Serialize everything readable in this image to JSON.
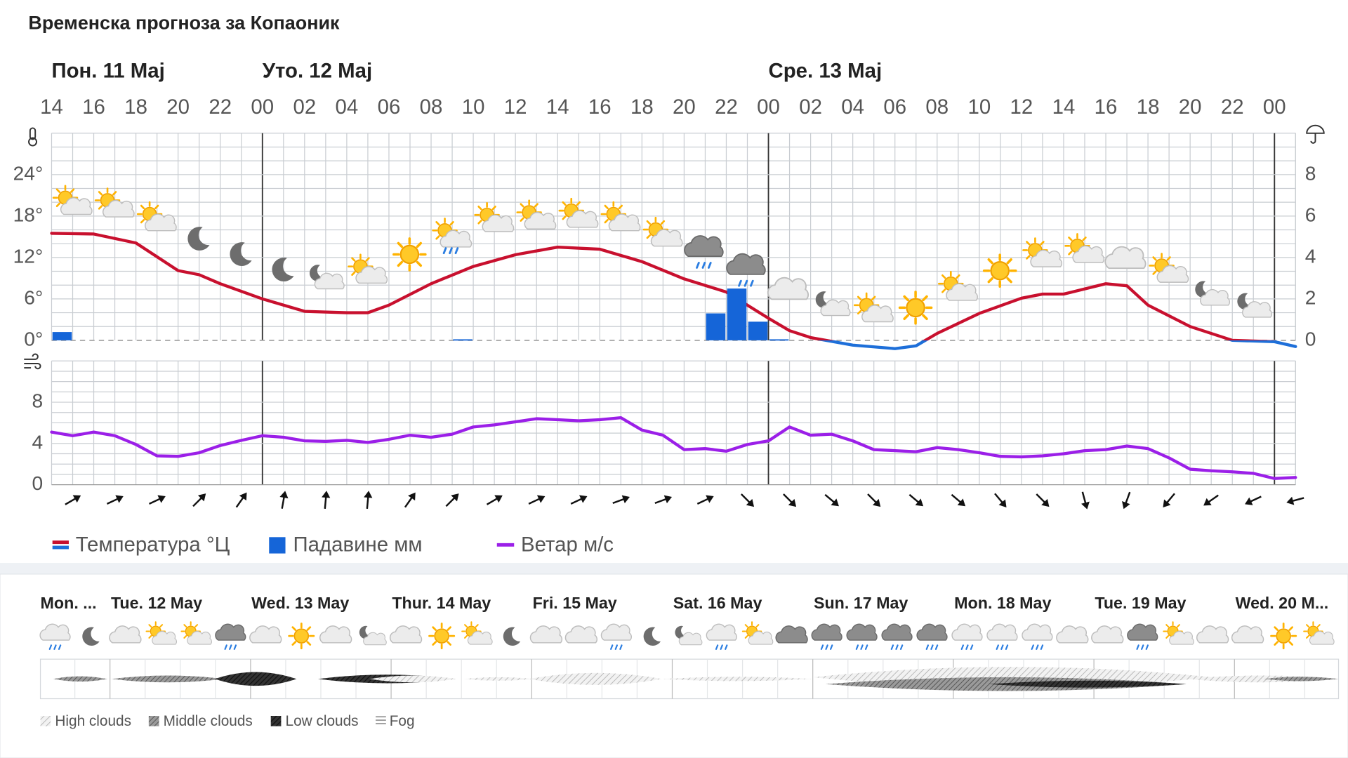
{
  "title": "Временска прогноза за Копаоник",
  "chart_data": [
    {
      "type": "line",
      "xlim": [
        0,
        59
      ],
      "xticks": [
        {
          "value": 0,
          "label": "14"
        },
        {
          "value": 2,
          "label": "16"
        },
        {
          "value": 4,
          "label": "18"
        },
        {
          "value": 6,
          "label": "20"
        },
        {
          "value": 8,
          "label": "22"
        },
        {
          "value": 10,
          "label": "00"
        },
        {
          "value": 12,
          "label": "02"
        },
        {
          "value": 14,
          "label": "04"
        },
        {
          "value": 16,
          "label": "06"
        },
        {
          "value": 18,
          "label": "08"
        },
        {
          "value": 20,
          "label": "10"
        },
        {
          "value": 22,
          "label": "12"
        },
        {
          "value": 24,
          "label": "14"
        },
        {
          "value": 26,
          "label": "16"
        },
        {
          "value": 28,
          "label": "18"
        },
        {
          "value": 30,
          "label": "20"
        },
        {
          "value": 32,
          "label": "22"
        },
        {
          "value": 34,
          "label": "00"
        },
        {
          "value": 36,
          "label": "02"
        },
        {
          "value": 38,
          "label": "04"
        },
        {
          "value": 40,
          "label": "06"
        },
        {
          "value": 42,
          "label": "08"
        },
        {
          "value": 44,
          "label": "10"
        },
        {
          "value": 46,
          "label": "12"
        },
        {
          "value": 48,
          "label": "14"
        },
        {
          "value": 50,
          "label": "16"
        },
        {
          "value": 52,
          "label": "18"
        },
        {
          "value": 54,
          "label": "20"
        },
        {
          "value": 56,
          "label": "22"
        },
        {
          "value": 58,
          "label": "00"
        }
      ],
      "days": [
        {
          "value": 0,
          "label": "Пон. 11 Maj"
        },
        {
          "value": 10,
          "label": "Уто. 12 Maj"
        },
        {
          "value": 34,
          "label": "Сре. 13 Maj"
        }
      ],
      "ylim": [
        0,
        30
      ],
      "yticks": [
        {
          "value": 0,
          "label": "0°"
        },
        {
          "value": 6,
          "label": "6°"
        },
        {
          "value": 12,
          "label": "12°"
        },
        {
          "value": 18,
          "label": "18°"
        },
        {
          "value": 24,
          "label": "24°"
        }
      ],
      "y2lim": [
        0,
        10
      ],
      "y2ticks": [
        0,
        2,
        4,
        6,
        8
      ],
      "grid": true,
      "series": [
        {
          "name": "Температура °Ц",
          "color": "#c8102e",
          "negative_color": "#1e6fd9",
          "x": [
            0,
            2,
            4,
            6,
            7,
            8,
            10,
            12,
            14,
            15,
            16,
            18,
            20,
            22,
            24,
            26,
            28,
            30,
            32,
            34,
            35,
            36,
            38,
            40,
            41,
            42,
            44,
            46,
            47,
            48,
            50,
            51,
            52,
            54,
            56,
            58,
            59
          ],
          "values": [
            15.5,
            15.4,
            14.1,
            10.1,
            9.5,
            8.2,
            6,
            4.2,
            4,
            4,
            5.1,
            8.2,
            10.7,
            12.4,
            13.5,
            13.2,
            11.4,
            8.9,
            7,
            3.2,
            1.4,
            0.4,
            -0.7,
            -1.2,
            -0.8,
            1,
            3.9,
            6.1,
            6.7,
            6.7,
            8.2,
            7.9,
            5.1,
            2,
            0,
            -0.2,
            -0.9
          ]
        },
        {
          "name": "Падавине мм",
          "type": "bar",
          "axis": "y2",
          "color": "#1565d8",
          "x": [
            0,
            19,
            31,
            32,
            33,
            34
          ],
          "values": [
            0.4,
            0.05,
            1.3,
            2.5,
            0.9,
            0.05
          ]
        }
      ]
    },
    {
      "type": "line",
      "ylim": [
        0,
        12
      ],
      "yticks": [
        0,
        4,
        8
      ],
      "grid": true,
      "series": [
        {
          "name": "Ветар м/с",
          "color": "#9b1fe8",
          "x": [
            0,
            1,
            2,
            3,
            4,
            5,
            6,
            7,
            8,
            9,
            10,
            11,
            12,
            13,
            14,
            15,
            16,
            17,
            18,
            19,
            20,
            21,
            22,
            23,
            24,
            25,
            26,
            27,
            28,
            29,
            30,
            31,
            32,
            33,
            34,
            35,
            36,
            37,
            38,
            39,
            40,
            41,
            42,
            43,
            44,
            45,
            46,
            47,
            48,
            49,
            50,
            51,
            52,
            53,
            54,
            55,
            56,
            57,
            58,
            59
          ],
          "values": [
            5.1,
            4.75,
            5.1,
            4.75,
            3.9,
            2.8,
            2.75,
            3.1,
            3.8,
            4.3,
            4.75,
            4.6,
            4.25,
            4.2,
            4.3,
            4.1,
            4.4,
            4.8,
            4.6,
            4.9,
            5.6,
            5.8,
            6.1,
            6.4,
            6.3,
            6.2,
            6.3,
            6.5,
            5.3,
            4.8,
            3.4,
            3.5,
            3.25,
            3.9,
            4.25,
            5.6,
            4.8,
            4.9,
            4.25,
            3.4,
            3.3,
            3.2,
            3.6,
            3.4,
            3.1,
            2.75,
            2.7,
            2.8,
            3,
            3.3,
            3.4,
            3.75,
            3.5,
            2.6,
            1.5,
            1.35,
            1.25,
            1.1,
            0.6,
            0.7
          ]
        }
      ],
      "wind_directions": {
        "x": [
          1,
          3,
          5,
          7,
          9,
          11,
          13,
          15,
          17,
          19,
          21,
          23,
          25,
          27,
          29,
          31,
          33,
          35,
          37,
          39,
          41,
          43,
          45,
          47,
          49,
          51,
          53,
          55,
          57,
          59
        ],
        "values": [
          60,
          65,
          65,
          45,
          35,
          10,
          5,
          5,
          35,
          45,
          60,
          65,
          65,
          70,
          70,
          65,
          135,
          135,
          130,
          135,
          130,
          130,
          140,
          135,
          165,
          200,
          220,
          235,
          245,
          255
        ]
      }
    }
  ],
  "outlook": {
    "days": [
      "Mon. ...",
      "Tue. 12 May",
      "Wed. 13 May",
      "Thur. 14 May",
      "Fri. 15 May",
      "Sat. 16 May",
      "Sun. 17 May",
      "Mon. 18 May",
      "Tue. 19 May",
      "Wed. 20 M..."
    ],
    "legend": [
      "High clouds",
      "Middle clouds",
      "Low clouds",
      "Fog"
    ]
  }
}
